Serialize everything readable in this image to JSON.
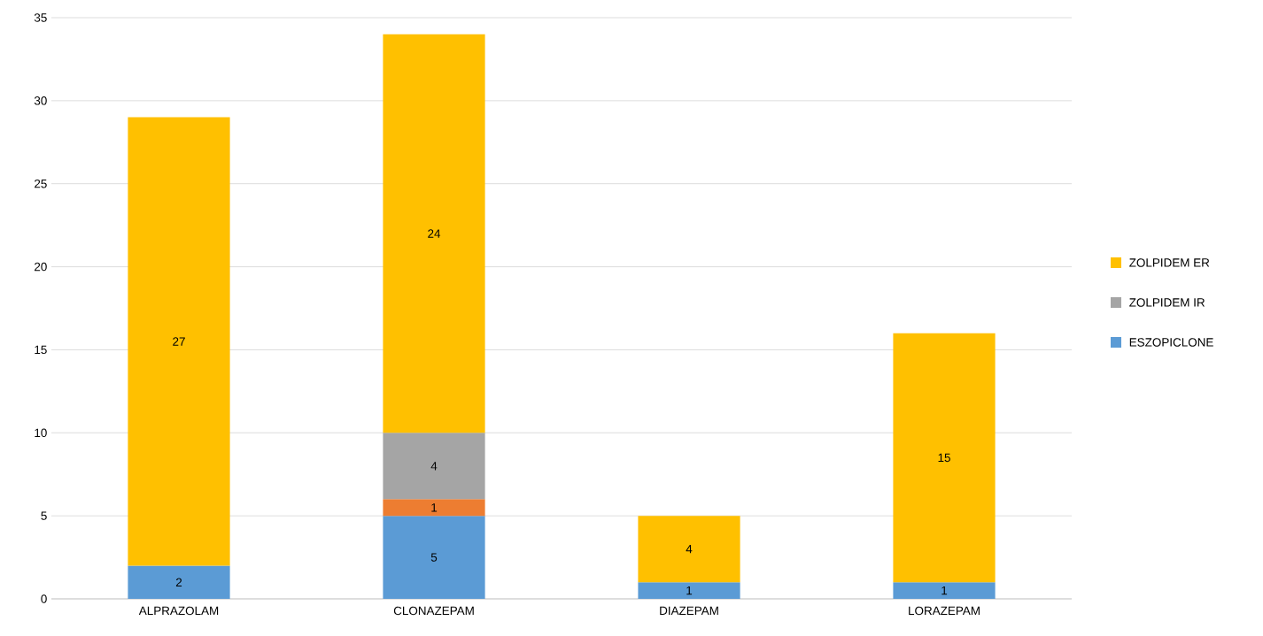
{
  "chart_data": {
    "type": "bar",
    "stacked": true,
    "categories": [
      "ALPRAZOLAM",
      "CLONAZEPAM",
      "DIAZEPAM",
      "LORAZEPAM"
    ],
    "series": [
      {
        "name": "ESZOPICLONE",
        "color": "#5b9bd5",
        "values": [
          2,
          5,
          1,
          1
        ]
      },
      {
        "color": "#ed7d31",
        "values": [
          null,
          1,
          null,
          null
        ]
      },
      {
        "name": "ZOLPIDEM IR",
        "color": "#a5a5a5",
        "values": [
          null,
          4,
          null,
          null
        ]
      },
      {
        "name": "ZOLPIDEM ER",
        "color": "#ffc000",
        "values": [
          27,
          24,
          4,
          15
        ]
      }
    ],
    "ylim": [
      0,
      35
    ],
    "yticks": [
      0,
      5,
      10,
      15,
      20,
      25,
      30,
      35
    ],
    "grid": "y",
    "legend": "right",
    "data_labels": true
  }
}
